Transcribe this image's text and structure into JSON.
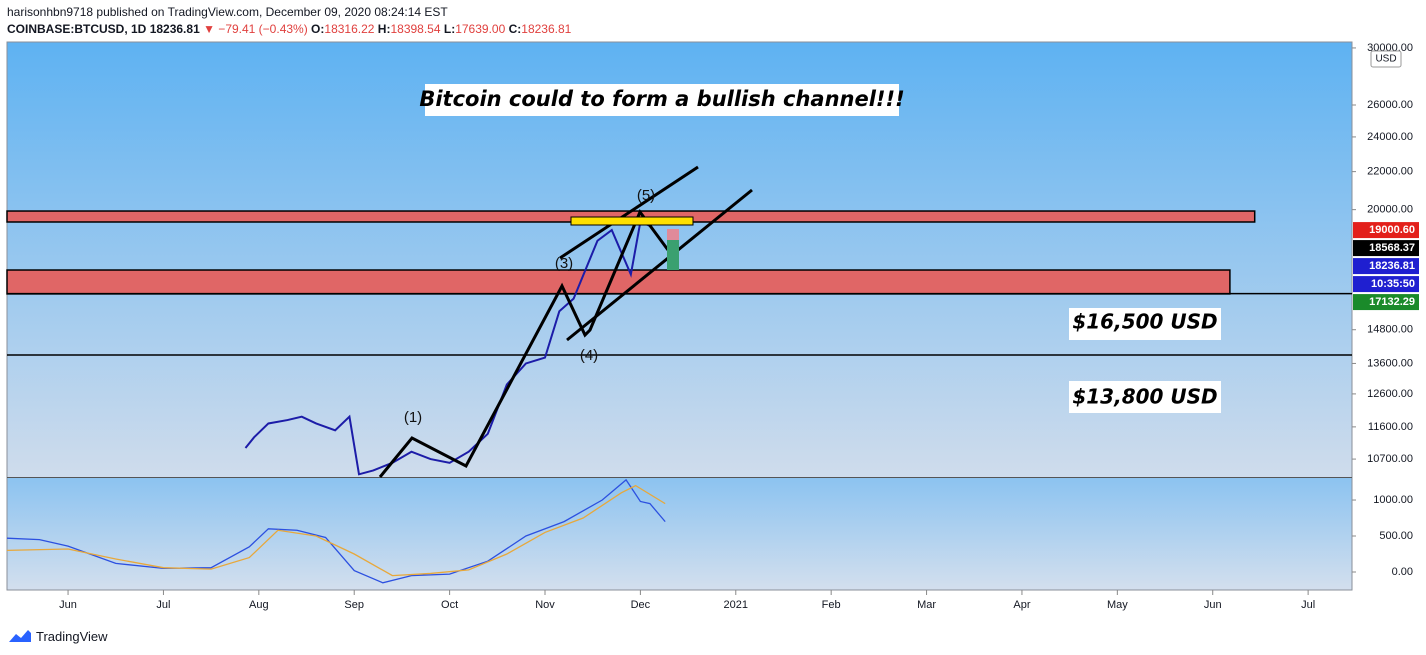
{
  "header": {
    "published": "harisonhbn9718 published on TradingView.com, December 09, 2020 08:24:14 EST",
    "symbol": "COINBASE:BTCUSD, 1D",
    "last": "18236.81",
    "change": "▼ −79.41 (−0.43%)",
    "o_label": "O:",
    "o": "18316.22",
    "h_label": "H:",
    "h": "18398.54",
    "l_label": "L:",
    "l": "17639.00",
    "c_label": "C:",
    "c": "18236.81"
  },
  "footer": "TradingView",
  "chart_data": [
    {
      "type": "line",
      "title": "Bitcoin could to form a bullish channel!!!",
      "log_scale": true,
      "currency": "USD",
      "x": [
        1.86,
        1.95,
        2.1,
        2.3,
        2.45,
        2.6,
        2.8,
        2.95,
        3.05,
        3.2,
        3.4,
        3.6,
        3.8,
        4.0,
        4.2,
        4.4,
        4.6,
        4.8,
        5.0,
        5.15,
        5.3,
        5.55,
        5.7,
        5.9,
        6.0,
        6.1,
        6.26
      ],
      "values": [
        11000,
        11300,
        11700,
        11800,
        11900,
        11700,
        11500,
        11900,
        10300,
        10400,
        10600,
        10900,
        10700,
        10600,
        10900,
        11400,
        12900,
        13600,
        13800,
        15500,
        16000,
        18500,
        19000,
        17000,
        19400,
        19200,
        18236.81
      ],
      "color": "#1c1ca8",
      "xlim": [
        -0.64,
        13.46
      ],
      "xticks": [
        {
          "value": 0,
          "label": "Jun"
        },
        {
          "value": 1,
          "label": "Jul"
        },
        {
          "value": 2,
          "label": "Aug"
        },
        {
          "value": 3,
          "label": "Sep"
        },
        {
          "value": 4,
          "label": "Oct"
        },
        {
          "value": 5,
          "label": "Nov"
        },
        {
          "value": 6,
          "label": "Dec"
        },
        {
          "value": 7,
          "label": "2021"
        },
        {
          "value": 8,
          "label": "Feb"
        },
        {
          "value": 9,
          "label": "Mar"
        },
        {
          "value": 10,
          "label": "Apr"
        },
        {
          "value": 11,
          "label": "May"
        },
        {
          "value": 12,
          "label": "Jun"
        },
        {
          "value": 13,
          "label": "Jul"
        }
      ],
      "ylim": [
        10230,
        30450
      ],
      "yticks": [
        {
          "value": 30000,
          "label": "30000.00"
        },
        {
          "value": 26000,
          "label": "26000.00"
        },
        {
          "value": 24000,
          "label": "24000.00"
        },
        {
          "value": 22000,
          "label": "22000.00"
        },
        {
          "value": 20000,
          "label": "20000.00"
        },
        {
          "value": 14800,
          "label": "14800.00"
        },
        {
          "value": 13600,
          "label": "13600.00"
        },
        {
          "value": 12600,
          "label": "12600.00"
        },
        {
          "value": 11600,
          "label": "11600.00"
        },
        {
          "value": 10700,
          "label": "10700.00"
        }
      ],
      "zones": [
        {
          "low": 19390,
          "high": 19930,
          "end": 12.44,
          "color": "#e06666"
        },
        {
          "low": 16190,
          "high": 17190,
          "end": 12.18,
          "color": "#e06666"
        }
      ],
      "levels": [
        16200,
        13890
      ],
      "price_labels": [
        {
          "value": 19000.6,
          "label": "19000.60",
          "color": "#e3201b"
        },
        {
          "value": 18568.37,
          "label": "18568.37",
          "color": "#000000"
        },
        {
          "value": 18236.81,
          "label": "18236.81",
          "color": "#1f1fd0"
        },
        {
          "value": 17132.29,
          "label": "17132.29",
          "color": "#1a8a2a"
        }
      ],
      "countdown": "10:35:50",
      "annotations": [
        "$16,500 USD",
        "$13,800 USD"
      ],
      "waves": [
        "(1)",
        "(3)",
        "(4)",
        "(5)"
      ]
    },
    {
      "type": "line",
      "ylim": [
        -250,
        1306
      ],
      "yticks": [
        {
          "value": 1000,
          "label": "1000.00"
        },
        {
          "value": 500,
          "label": "500.00"
        },
        {
          "value": 0,
          "label": "0.00"
        }
      ],
      "series": [
        {
          "color": "#2c50e0",
          "x": [
            -0.64,
            -0.3,
            0,
            0.5,
            1.0,
            1.5,
            1.9,
            2.1,
            2.4,
            2.7,
            3.0,
            3.3,
            3.6,
            4.0,
            4.4,
            4.8,
            5.2,
            5.6,
            5.85,
            6.0,
            6.1,
            6.26
          ],
          "values": [
            470,
            450,
            360,
            120,
            50,
            60,
            350,
            600,
            580,
            480,
            20,
            -150,
            -50,
            -30,
            150,
            500,
            700,
            1000,
            1280,
            980,
            950,
            700
          ]
        },
        {
          "color": "#e8a83a",
          "x": [
            -0.64,
            0,
            0.5,
            1.0,
            1.5,
            1.9,
            2.2,
            2.6,
            3.0,
            3.4,
            3.8,
            4.2,
            4.6,
            5.0,
            5.4,
            5.8,
            5.95,
            6.26
          ],
          "values": [
            300,
            320,
            180,
            60,
            40,
            200,
            580,
            500,
            250,
            -50,
            -20,
            30,
            250,
            550,
            750,
            1100,
            1200,
            950
          ]
        }
      ]
    }
  ]
}
